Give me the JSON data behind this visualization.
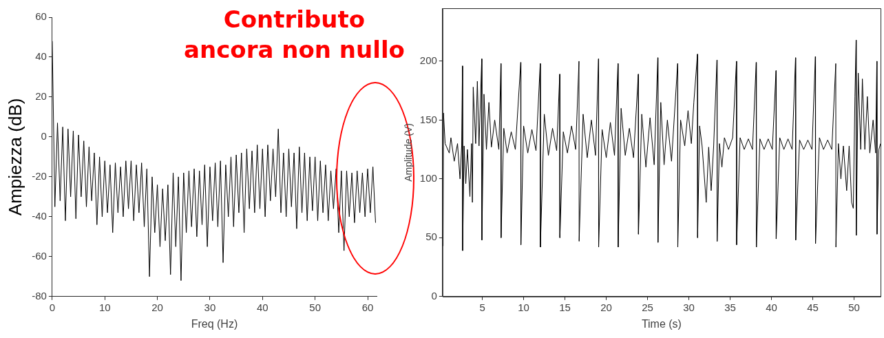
{
  "chart_data": [
    {
      "type": "line",
      "xlabel": "Freq (Hz)",
      "ylabel": "Ampiezza (dB)",
      "xlim": [
        0,
        61.7
      ],
      "ylim": [
        -80,
        60
      ],
      "xticks": [
        0,
        10,
        20,
        30,
        40,
        50,
        60
      ],
      "yticks": [
        -80,
        -60,
        -40,
        -20,
        0,
        20,
        40,
        60
      ],
      "grid": false,
      "legend": false,
      "marker": "none",
      "line_style": "solid",
      "annotations": [
        "Contributo ancora non nullo"
      ],
      "series": [
        {
          "color": "#000000",
          "x": [
            0,
            0.5,
            1,
            1.5,
            2,
            2.5,
            3,
            3.5,
            4,
            4.5,
            5,
            5.5,
            6,
            6.5,
            7,
            7.5,
            8,
            8.5,
            9,
            9.5,
            10,
            10.5,
            11,
            11.5,
            12,
            12.5,
            13,
            13.5,
            14,
            14.5,
            15,
            15.5,
            16,
            16.5,
            17,
            17.5,
            18,
            18.5,
            19,
            19.5,
            20,
            20.5,
            21,
            21.5,
            22,
            22.5,
            23,
            23.5,
            24,
            24.5,
            25,
            25.5,
            26,
            26.5,
            27,
            27.5,
            28,
            28.5,
            29,
            29.5,
            30,
            30.5,
            31,
            31.5,
            32,
            32.5,
            33,
            33.5,
            34,
            34.5,
            35,
            35.5,
            36,
            36.5,
            37,
            37.5,
            38,
            38.5,
            39,
            39.5,
            40,
            40.5,
            41,
            41.5,
            42,
            42.5,
            43,
            43.5,
            44,
            44.5,
            45,
            45.5,
            46,
            46.5,
            47,
            47.5,
            48,
            48.5,
            49,
            49.5,
            50,
            50.5,
            51,
            51.5,
            52,
            52.5,
            53,
            53.5,
            54,
            54.5,
            55,
            55.5,
            56,
            56.5,
            57,
            57.5,
            58,
            58.5,
            59,
            59.5,
            60,
            60.5,
            61,
            61.5
          ],
          "values": [
            48,
            -35,
            7,
            -32,
            5,
            -42,
            4,
            -30,
            3,
            -41,
            1,
            -30,
            -2,
            -35,
            -5,
            -32,
            -8,
            -44,
            -10,
            -40,
            -12,
            -38,
            -14,
            -48,
            -13,
            -38,
            -15,
            -40,
            -12,
            -36,
            -12,
            -42,
            -14,
            -38,
            -13,
            -45,
            -16,
            -70,
            -20,
            -48,
            -24,
            -55,
            -26,
            -52,
            -24,
            -69,
            -18,
            -55,
            -20,
            -72,
            -18,
            -48,
            -17,
            -45,
            -16,
            -50,
            -17,
            -44,
            -14,
            -55,
            -15,
            -42,
            -13,
            -45,
            -12,
            -63,
            -14,
            -40,
            -10,
            -45,
            -9,
            -38,
            -8,
            -48,
            -6,
            -36,
            -7,
            -38,
            -4,
            -36,
            -6,
            -40,
            -4,
            -32,
            -6,
            -30,
            4,
            -38,
            -8,
            -40,
            -6,
            -35,
            -8,
            -46,
            -5,
            -38,
            -8,
            -42,
            -10,
            -37,
            -10,
            -42,
            -12,
            -38,
            -14,
            -42,
            -17,
            -36,
            -16,
            -48,
            -17,
            -57,
            -17,
            -40,
            -18,
            -43,
            -17,
            -38,
            -18,
            -40,
            -16,
            -38,
            -15,
            -43
          ]
        }
      ]
    },
    {
      "type": "line",
      "xlabel": "Time (s)",
      "ylabel": "Amplitude (V)",
      "xlim": [
        0.19,
        53.2
      ],
      "ylim": [
        0,
        245
      ],
      "xticks": [
        5,
        10,
        15,
        20,
        25,
        30,
        35,
        40,
        45,
        50
      ],
      "yticks": [
        0,
        50,
        100,
        150,
        200
      ],
      "grid": false,
      "legend": false,
      "marker": "none",
      "line_style": "solid",
      "series": [
        {
          "color": "#000000",
          "x": [
            0.19,
            0.25,
            0.3,
            0.5,
            1.0,
            1.2,
            1.6,
            2.0,
            2.3,
            2.5,
            2.6,
            2.62,
            2.8,
            3.0,
            3.2,
            3.5,
            3.7,
            3.8,
            3.9,
            4.2,
            4.4,
            4.6,
            4.93,
            4.95,
            5.2,
            5.5,
            5.8,
            6.1,
            6.5,
            7.0,
            7.25,
            7.27,
            7.6,
            8.0,
            8.5,
            9.0,
            9.65,
            9.67,
            10.0,
            10.5,
            11.0,
            11.5,
            12.01,
            12.03,
            12.5,
            13.0,
            13.5,
            14.0,
            14.37,
            14.39,
            14.8,
            15.3,
            15.8,
            16.3,
            16.7,
            16.72,
            17.2,
            17.7,
            18.2,
            18.7,
            19.06,
            19.08,
            19.5,
            20.0,
            20.5,
            21.0,
            21.42,
            21.44,
            21.8,
            22.3,
            22.8,
            23.3,
            23.88,
            23.9,
            24.3,
            24.8,
            25.3,
            25.8,
            26.24,
            26.26,
            26.6,
            27.0,
            27.4,
            27.9,
            28.64,
            28.66,
            29.0,
            29.5,
            29.9,
            30.3,
            30.6,
            31.04,
            31.06,
            31.3,
            31.6,
            32.1,
            32.4,
            32.7,
            33.0,
            33.4,
            33.42,
            33.7,
            34.0,
            34.3,
            34.8,
            35.3,
            35.76,
            35.78,
            36.2,
            36.7,
            37.2,
            37.7,
            38.15,
            38.17,
            38.6,
            39.1,
            39.6,
            40.1,
            40.55,
            40.57,
            41.0,
            41.5,
            42.0,
            42.5,
            42.91,
            42.93,
            43.4,
            43.9,
            44.4,
            44.9,
            45.31,
            45.33,
            45.8,
            46.3,
            46.8,
            47.3,
            47.78,
            47.8,
            48.1,
            48.4,
            48.7,
            49.1,
            49.4,
            49.7,
            49.9,
            50.1,
            50.24,
            50.26,
            50.5,
            50.8,
            51.0,
            51.3,
            51.6,
            51.9,
            52.3,
            52.6,
            52.75,
            52.77,
            53.0,
            53.2
          ],
          "values": [
            127,
            43,
            156,
            130,
            122,
            135,
            115,
            130,
            100,
            128,
            196,
            39,
            128,
            96,
            125,
            85,
            130,
            80,
            178,
            130,
            183,
            128,
            202,
            48,
            172,
            125,
            165,
            127,
            150,
            125,
            198,
            50,
            143,
            122,
            140,
            125,
            199,
            44,
            145,
            122,
            142,
            124,
            198,
            42,
            155,
            120,
            143,
            124,
            189,
            50,
            140,
            122,
            145,
            125,
            200,
            47,
            155,
            118,
            150,
            120,
            202,
            42,
            142,
            118,
            148,
            120,
            198,
            42,
            160,
            120,
            143,
            118,
            189,
            53,
            155,
            110,
            152,
            112,
            203,
            46,
            165,
            112,
            150,
            115,
            198,
            42,
            150,
            128,
            158,
            130,
            165,
            206,
            50,
            145,
            128,
            80,
            127,
            90,
            128,
            201,
            47,
            130,
            110,
            135,
            125,
            135,
            200,
            44,
            135,
            125,
            134,
            125,
            199,
            42,
            134,
            125,
            134,
            125,
            192,
            49,
            135,
            125,
            134,
            125,
            203,
            48,
            133,
            125,
            133,
            125,
            204,
            45,
            135,
            125,
            133,
            125,
            198,
            42,
            130,
            100,
            128,
            90,
            128,
            80,
            75,
            170,
            218,
            52,
            190,
            125,
            185,
            125,
            170,
            122,
            150,
            122,
            200,
            53,
            125,
            130
          ]
        }
      ]
    }
  ]
}
